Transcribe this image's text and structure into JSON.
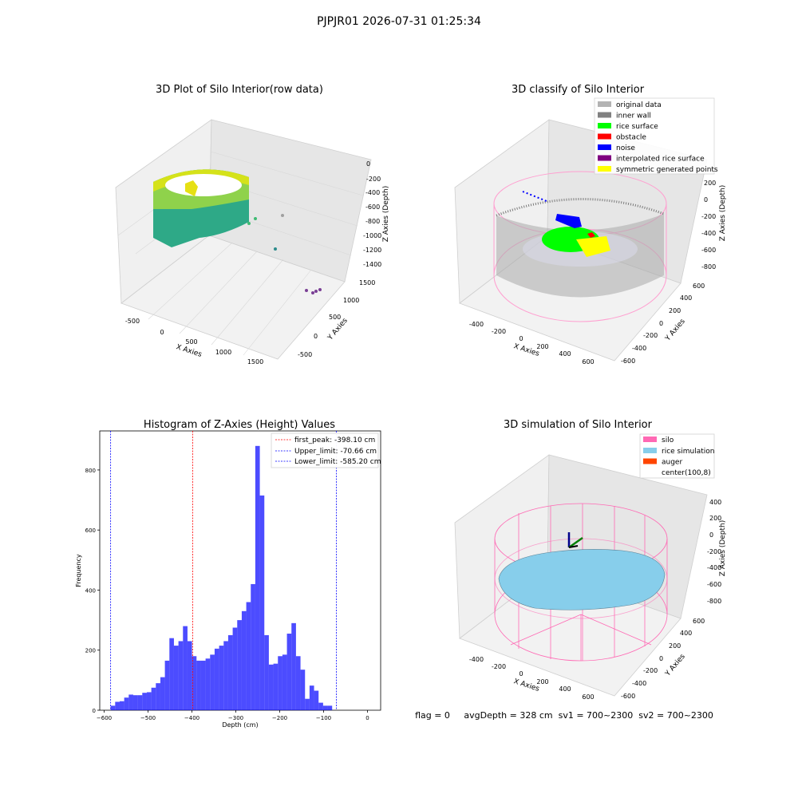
{
  "figure": {
    "suptitle": "PJPJR01 2026-07-31 01:25:34",
    "footer": "flag = 0     avgDepth = 328 cm  sv1 = 700~2300  sv2 = 700~2300"
  },
  "panels": {
    "raw": {
      "title": "3D Plot of Silo Interior(row data)",
      "xlabel": "X Axies",
      "ylabel": "Y Axies",
      "zlabel": "Z Axies (Depth)",
      "xticks": [
        "-500",
        "0",
        "500",
        "1000",
        "1500"
      ],
      "yticks": [
        "-500",
        "0",
        "500",
        "1000",
        "1500"
      ],
      "zticks": [
        "0",
        "-200",
        "-400",
        "-600",
        "-800",
        "-1000",
        "-1200",
        "-1400"
      ]
    },
    "classify": {
      "title": "3D classify of Silo Interior",
      "xlabel": "X Axies",
      "ylabel": "Y Axies",
      "zlabel": "Z Axies (Depth)",
      "xticks": [
        "-400",
        "-200",
        "0",
        "200",
        "400",
        "600"
      ],
      "yticks": [
        "-600",
        "-400",
        "-200",
        "0",
        "200",
        "400",
        "600"
      ],
      "zticks": [
        "200",
        "0",
        "-200",
        "-400",
        "-600",
        "-800"
      ],
      "legend": [
        {
          "label": "original data",
          "color": "#b3b3b3"
        },
        {
          "label": "inner wall",
          "color": "#808080"
        },
        {
          "label": "rice surface",
          "color": "#00ff00"
        },
        {
          "label": "obstacle",
          "color": "#ff0000"
        },
        {
          "label": "noise",
          "color": "#0000ff"
        },
        {
          "label": "interpolated rice surface",
          "color": "#800080"
        },
        {
          "label": "symmetric generated points",
          "color": "#ffff00"
        }
      ]
    },
    "simulation": {
      "title": "3D simulation of Silo Interior",
      "xlabel": "X Axies",
      "ylabel": "Y Axies",
      "zlabel": "Z Axies (Depth)",
      "xticks": [
        "-400",
        "-200",
        "0",
        "200",
        "400",
        "600"
      ],
      "yticks": [
        "-600",
        "-400",
        "-200",
        "0",
        "200",
        "400",
        "600"
      ],
      "zticks": [
        "400",
        "200",
        "0",
        "-200",
        "-400",
        "-600",
        "-800"
      ],
      "legend": [
        {
          "label": "silo",
          "color": "#ff69b4"
        },
        {
          "label": "rice simulation",
          "color": "#87ceeb"
        },
        {
          "label": "auger",
          "color": "#ff4500"
        },
        {
          "label": "center(100,8)",
          "color": null
        }
      ]
    }
  },
  "chart_data": {
    "type": "bar",
    "title": "Histogram of Z-Axies (Height) Values",
    "xlabel": "Depth (cm)",
    "ylabel": "Frequency",
    "xlim": [
      -610,
      30
    ],
    "ylim": [
      0,
      930
    ],
    "xticks": [
      -600,
      -500,
      -400,
      -300,
      -200,
      -100,
      0
    ],
    "yticks": [
      0,
      200,
      400,
      600,
      800
    ],
    "bar_color": "#0000ff",
    "bin_start": -585.2,
    "bin_width": 10.3,
    "values": [
      15,
      28,
      30,
      42,
      52,
      50,
      50,
      58,
      60,
      75,
      90,
      110,
      165,
      240,
      215,
      230,
      280,
      230,
      180,
      165,
      165,
      172,
      185,
      205,
      215,
      230,
      250,
      275,
      300,
      330,
      360,
      420,
      880,
      715,
      250,
      152,
      155,
      180,
      185,
      255,
      290,
      180,
      135,
      38,
      82,
      65,
      25,
      15,
      15
    ],
    "vlines": [
      {
        "label": "first_peak: -398.10 cm",
        "x": -398.1,
        "color": "#ff0000"
      },
      {
        "label": "Upper_limit: -70.66 cm",
        "x": -70.66,
        "color": "#0000ff"
      },
      {
        "label": "Lower_limit: -585.20 cm",
        "x": -585.2,
        "color": "#0000ff"
      }
    ],
    "legend_position": "upper right"
  }
}
